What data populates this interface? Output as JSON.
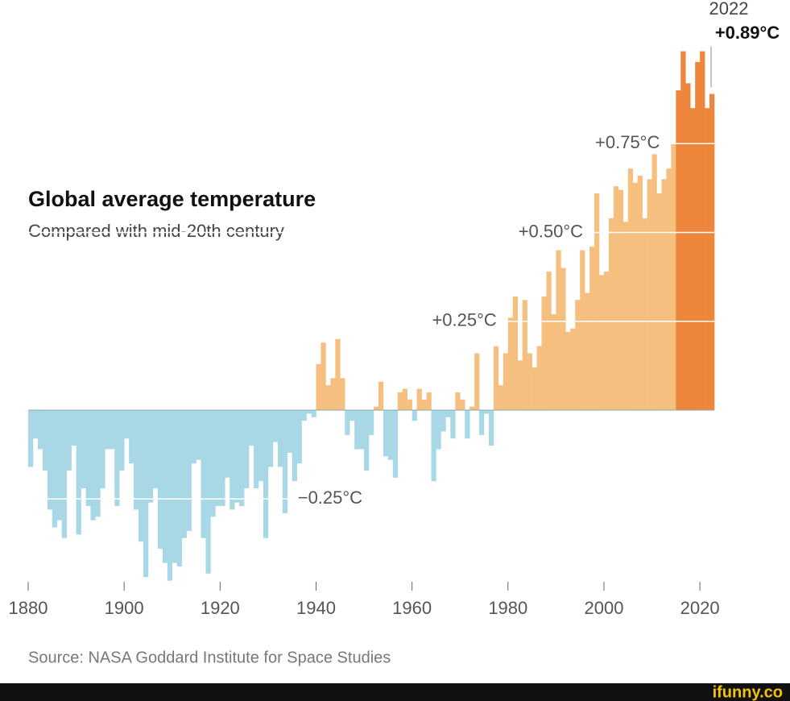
{
  "chart_data": {
    "type": "bar",
    "title": "Global average temperature",
    "subtitle": "Compared with mid-20th century",
    "source": "Source: NASA Goddard Institute for Space Studies",
    "x": [
      1880,
      1881,
      1882,
      1883,
      1884,
      1885,
      1886,
      1887,
      1888,
      1889,
      1890,
      1891,
      1892,
      1893,
      1894,
      1895,
      1896,
      1897,
      1898,
      1899,
      1900,
      1901,
      1902,
      1903,
      1904,
      1905,
      1906,
      1907,
      1908,
      1909,
      1910,
      1911,
      1912,
      1913,
      1914,
      1915,
      1916,
      1917,
      1918,
      1919,
      1920,
      1921,
      1922,
      1923,
      1924,
      1925,
      1926,
      1927,
      1928,
      1929,
      1930,
      1931,
      1932,
      1933,
      1934,
      1935,
      1936,
      1937,
      1938,
      1939,
      1940,
      1941,
      1942,
      1943,
      1944,
      1945,
      1946,
      1947,
      1948,
      1949,
      1950,
      1951,
      1952,
      1953,
      1954,
      1955,
      1956,
      1957,
      1958,
      1959,
      1960,
      1961,
      1962,
      1963,
      1964,
      1965,
      1966,
      1967,
      1968,
      1969,
      1970,
      1971,
      1972,
      1973,
      1974,
      1975,
      1976,
      1977,
      1978,
      1979,
      1980,
      1981,
      1982,
      1983,
      1984,
      1985,
      1986,
      1987,
      1988,
      1989,
      1990,
      1991,
      1992,
      1993,
      1994,
      1995,
      1996,
      1997,
      1998,
      1999,
      2000,
      2001,
      2002,
      2003,
      2004,
      2005,
      2006,
      2007,
      2008,
      2009,
      2010,
      2011,
      2012,
      2013,
      2014,
      2015,
      2016,
      2017,
      2018,
      2019,
      2020,
      2021,
      2022
    ],
    "values": [
      -0.16,
      -0.08,
      -0.11,
      -0.17,
      -0.28,
      -0.33,
      -0.31,
      -0.36,
      -0.17,
      -0.1,
      -0.35,
      -0.22,
      -0.27,
      -0.31,
      -0.3,
      -0.22,
      -0.11,
      -0.11,
      -0.27,
      -0.17,
      -0.08,
      -0.15,
      -0.28,
      -0.37,
      -0.47,
      -0.26,
      -0.22,
      -0.39,
      -0.43,
      -0.48,
      -0.43,
      -0.44,
      -0.36,
      -0.34,
      -0.15,
      -0.14,
      -0.36,
      -0.46,
      -0.3,
      -0.27,
      -0.27,
      -0.19,
      -0.28,
      -0.26,
      -0.27,
      -0.22,
      -0.1,
      -0.22,
      -0.2,
      -0.36,
      -0.16,
      -0.09,
      -0.16,
      -0.29,
      -0.12,
      -0.2,
      -0.15,
      -0.03,
      -0.01,
      -0.02,
      0.13,
      0.19,
      0.07,
      0.09,
      0.2,
      0.09,
      -0.07,
      -0.03,
      -0.11,
      -0.11,
      -0.17,
      -0.07,
      0.01,
      0.08,
      -0.13,
      -0.14,
      -0.19,
      0.05,
      0.06,
      0.03,
      -0.03,
      0.06,
      0.03,
      0.05,
      -0.2,
      -0.11,
      -0.06,
      -0.02,
      -0.08,
      0.05,
      0.03,
      -0.08,
      0.01,
      0.16,
      -0.07,
      -0.01,
      -0.1,
      0.18,
      0.07,
      0.16,
      0.26,
      0.32,
      0.14,
      0.31,
      0.16,
      0.12,
      0.18,
      0.32,
      0.39,
      0.27,
      0.45,
      0.4,
      0.22,
      0.23,
      0.31,
      0.45,
      0.33,
      0.46,
      0.61,
      0.38,
      0.39,
      0.54,
      0.63,
      0.62,
      0.53,
      0.68,
      0.64,
      0.66,
      0.54,
      0.65,
      0.72,
      0.61,
      0.65,
      0.68,
      0.75,
      0.9,
      1.01,
      0.92,
      0.85,
      0.98,
      1.01,
      0.85,
      0.89
    ],
    "color_below": "#a8d8e6",
    "color_above": "#f5c07f",
    "highlight_color": "#ed863a",
    "highlight_from": 2015,
    "xlim": [
      1880,
      2023
    ],
    "xticks": [
      1880,
      1900,
      1920,
      1940,
      1960,
      1980,
      2000,
      2020
    ],
    "ylim": [
      -0.5,
      1.05
    ],
    "yticks": [
      {
        "value": -0.25,
        "label": "−0.25°C"
      },
      {
        "value": 0.25,
        "label": "+0.25°C"
      },
      {
        "value": 0.5,
        "label": "+0.50°C"
      },
      {
        "value": 0.75,
        "label": "+0.75°C"
      }
    ],
    "callout": {
      "label": "2022",
      "value_label": "+0.89°C"
    }
  },
  "watermark": "ifunny.co"
}
